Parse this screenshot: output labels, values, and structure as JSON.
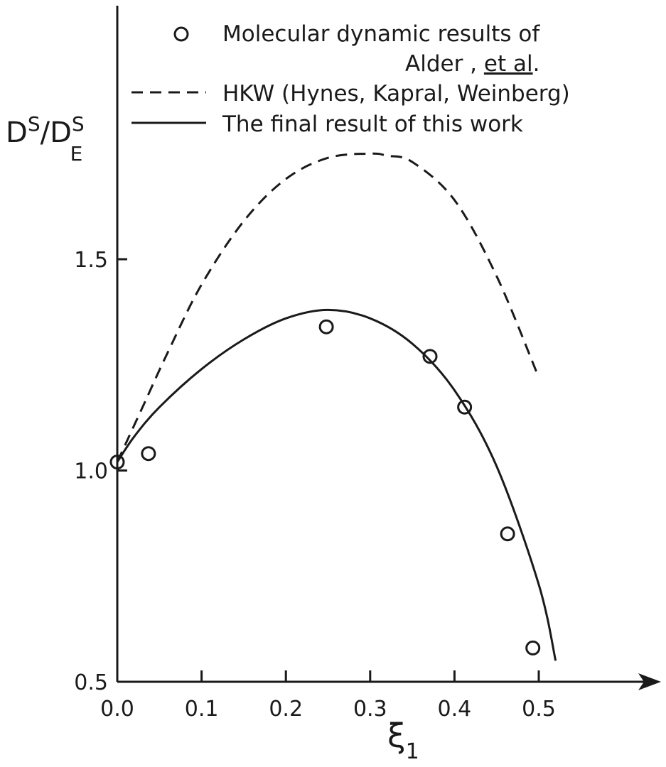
{
  "chart_data": {
    "type": "line",
    "title": "",
    "xlabel": {
      "symbol": "ξ",
      "subscript": "1"
    },
    "ylabel": {
      "base1": "D",
      "sup1": "S",
      "slash": "/",
      "base2": "D",
      "sup2": "S",
      "sub2": "E"
    },
    "xlim": [
      0.0,
      0.5
    ],
    "ylim": [
      0.5,
      1.5
    ],
    "x_ticks": [
      0.0,
      0.1,
      0.2,
      0.3,
      0.4,
      0.5
    ],
    "x_tick_labels": [
      "0.0",
      "0.1",
      "0.2",
      "0.3",
      "0.4",
      "0.5"
    ],
    "y_ticks": [
      0.5,
      1.0,
      1.5
    ],
    "y_tick_labels": [
      "0.5",
      "1.0",
      "1.5"
    ],
    "grid": false,
    "legend": {
      "placement": "top",
      "entries": [
        {
          "symbol": "circle",
          "line1": "Molecular dynamic results of",
          "line2_a": "Alder , ",
          "line2_b": "et al",
          "line2_c": "."
        },
        {
          "symbol": "dashed",
          "label": "HKW (Hynes, Kapral, Weinberg)"
        },
        {
          "symbol": "solid",
          "label": "The final result of this work"
        }
      ]
    },
    "series": [
      {
        "style": "circle",
        "x": [
          0.0,
          0.037,
          0.248,
          0.371,
          0.412,
          0.463,
          0.493
        ],
        "y": [
          1.02,
          1.04,
          1.34,
          1.27,
          1.15,
          0.85,
          0.58
        ]
      },
      {
        "style": "dashed",
        "x": [
          0.0,
          0.03,
          0.06,
          0.1,
          0.15,
          0.2,
          0.25,
          0.3,
          0.32,
          0.35,
          0.4,
          0.45,
          0.5
        ],
        "y": [
          1.02,
          1.15,
          1.28,
          1.44,
          1.59,
          1.69,
          1.74,
          1.75,
          1.745,
          1.73,
          1.64,
          1.46,
          1.22
        ]
      },
      {
        "style": "solid",
        "x": [
          0.0,
          0.02,
          0.05,
          0.1,
          0.15,
          0.2,
          0.25,
          0.3,
          0.35,
          0.4,
          0.45,
          0.5,
          0.52
        ],
        "y": [
          1.02,
          1.08,
          1.15,
          1.24,
          1.31,
          1.36,
          1.38,
          1.36,
          1.3,
          1.19,
          1.01,
          0.73,
          0.55
        ]
      }
    ]
  }
}
